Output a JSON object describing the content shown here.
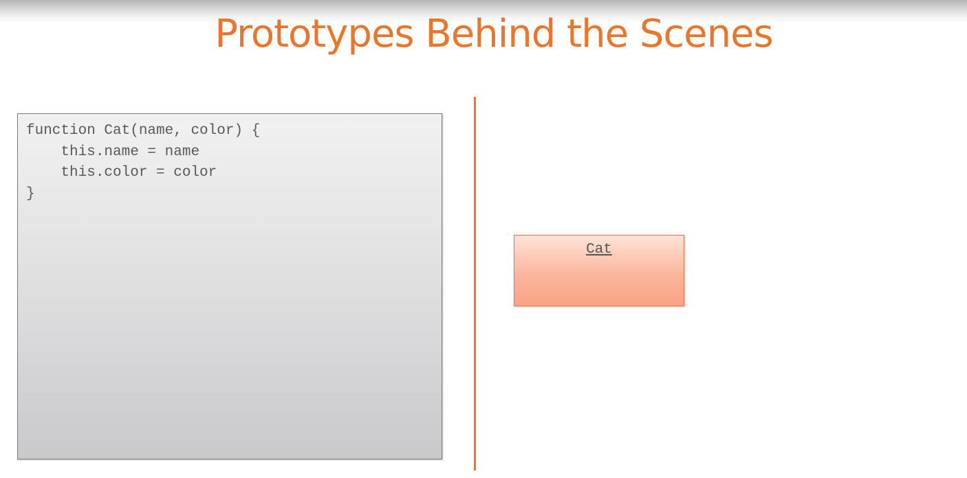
{
  "slide": {
    "title": "Prototypes Behind the Scenes"
  },
  "code_panel": {
    "lines": [
      "function Cat(name, color) {",
      "    this.name = name",
      "    this.color = color",
      "}"
    ]
  },
  "diagram": {
    "object_box_label": "Cat"
  },
  "colors": {
    "accent": "#e8772e",
    "object_box_fill": "#fbb79d",
    "code_text": "#595959"
  }
}
